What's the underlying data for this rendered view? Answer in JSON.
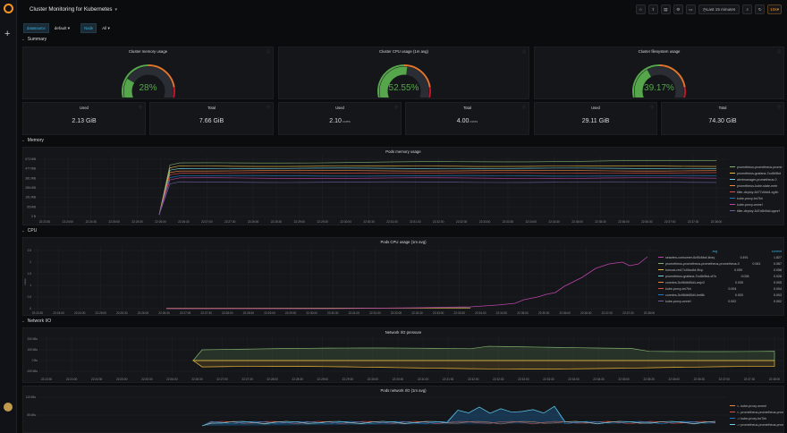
{
  "header": {
    "title": "Cluster Monitoring for Kubernetes",
    "time_range": "Last 15 minutes",
    "refresh": "10s"
  },
  "variables": [
    {
      "label": "datasource",
      "value": "default"
    },
    {
      "label": "Node",
      "value": "All"
    }
  ],
  "rows": {
    "summary": "Summary",
    "memory": "Memory",
    "cpu": "CPU",
    "network": "Network I/O"
  },
  "gauges": [
    {
      "title": "Cluster memory usage",
      "value": "28%",
      "fraction": 0.28
    },
    {
      "title": "Cluster CPU usage (1m avg)",
      "value": "52.55%",
      "fraction": 0.5255
    },
    {
      "title": "Cluster filesystem usage",
      "value": "39.17%",
      "fraction": 0.3917
    }
  ],
  "stats": [
    {
      "label": "Used",
      "value": "2.13 GiB",
      "unit": ""
    },
    {
      "label": "Total",
      "value": "7.66 GiB",
      "unit": ""
    },
    {
      "label": "Used",
      "value": "2.10",
      "unit": "cores"
    },
    {
      "label": "Total",
      "value": "4.00",
      "unit": "cores"
    },
    {
      "label": "Used",
      "value": "29.11 GiB",
      "unit": ""
    },
    {
      "label": "Total",
      "value": "74.30 GiB",
      "unit": ""
    }
  ],
  "colors": {
    "green": "#56a64b",
    "orange": "#e0752d",
    "red": "#c4162a",
    "blue": "#33b5e5"
  },
  "memory_panel": {
    "title": "Pods memory usage",
    "yticks": [
      "572 MiB",
      "477 MiB",
      "381 MiB",
      "286 MiB",
      "191 MiB",
      "95 MiB",
      "0 B"
    ],
    "xticks": [
      "22:23:30",
      "22:24:00",
      "22:24:30",
      "22:25:00",
      "22:25:30",
      "22:26:00",
      "22:26:30",
      "22:27:00",
      "22:27:30",
      "22:28:00",
      "22:28:30",
      "22:29:00",
      "22:29:30",
      "22:30:00",
      "22:30:30",
      "22:31:00",
      "22:31:30",
      "22:32:00",
      "22:32:30",
      "22:33:00",
      "22:33:30",
      "22:34:00",
      "22:34:30",
      "22:35:00",
      "22:35:30",
      "22:36:00",
      "22:36:30",
      "22:37:00",
      "22:37:30",
      "22:38:00"
    ],
    "legend": [
      {
        "name": "prometheus-prometheus-prome",
        "color": "#7eb26d"
      },
      {
        "name": "prometheus-grafana-7cc6b5bd",
        "color": "#eab839"
      },
      {
        "name": "alertmanager-prometheus-0",
        "color": "#6ed0e0"
      },
      {
        "name": "prometheus-kube-state-metr",
        "color": "#ef843c"
      },
      {
        "name": "tiller-deploy-6477c9dd4-xg4b",
        "color": "#e24d42"
      },
      {
        "name": "kube-proxy-bn7kh",
        "color": "#1f78c1"
      },
      {
        "name": "kube-proxy-wnmrl",
        "color": "#ba43a9"
      },
      {
        "name": "tiller-deploy-5d7c6b9dd-qqmrf",
        "color": "#705da0"
      }
    ]
  },
  "cpu_panel": {
    "title": "Pods CPU usage (1m avg)",
    "yticks": [
      "2.5",
      "2",
      "1.5",
      "1",
      "0.5",
      "0"
    ],
    "ylabel": "cores",
    "xticks": [
      "22:23:30",
      "22:24:00",
      "22:24:30",
      "22:25:00",
      "22:25:30",
      "22:26:00",
      "22:26:30",
      "22:27:00",
      "22:27:30",
      "22:28:00",
      "22:28:30",
      "22:29:00",
      "22:29:30",
      "22:30:00",
      "22:30:30",
      "22:31:00",
      "22:31:30",
      "22:32:00",
      "22:32:30",
      "22:33:00",
      "22:33:30",
      "22:34:00",
      "22:34:30",
      "22:35:00",
      "22:35:30",
      "22:36:00",
      "22:36:30",
      "22:37:00",
      "22:37:30",
      "22:38:00"
    ],
    "legend_headers": {
      "avg": "avg",
      "current": "current"
    },
    "legend": [
      {
        "name": "seaview-consumer-6cf5c6bcf-kbzy",
        "color": "#ba43a9",
        "avg": "0.491",
        "current": "1.827"
      },
      {
        "name": "prometheus-prometheus-prometheus-prometheus-0",
        "color": "#7eb26d",
        "avg": "0.061",
        "current": "0.067"
      },
      {
        "name": "tomcat-vm17c45cc6d-9lvp",
        "color": "#eab839",
        "avg": "0.059",
        "current": "0.058"
      },
      {
        "name": "prometheus-grafana-7cc6b5bd-xt7n",
        "color": "#6ed0e0",
        "avg": "0.026",
        "current": "0.026"
      },
      {
        "name": "coredns-5c98db65d4-wvjx2",
        "color": "#ef843c",
        "avg": "0.005",
        "current": "0.005"
      },
      {
        "name": "kube-proxy-bn7kh",
        "color": "#e24d42",
        "avg": "0.004",
        "current": "0.004"
      },
      {
        "name": "coredns-5c98db65d4-tmt8k",
        "color": "#1f78c1",
        "avg": "0.003",
        "current": "0.003"
      },
      {
        "name": "kube-proxy-wnmrl",
        "color": "#705da0",
        "avg": "0.002",
        "current": "0.002"
      }
    ]
  },
  "network_panel": {
    "title": "Network I/O pressure",
    "yticks": [
      "200 kBs",
      "100 kBs",
      "0 Bs",
      "-100 kBs"
    ],
    "xticks": [
      "22:23:30",
      "22:24:00",
      "22:24:30",
      "22:25:00",
      "22:25:30",
      "22:26:00",
      "22:26:30",
      "22:27:00",
      "22:27:30",
      "22:28:00",
      "22:28:30",
      "22:29:00",
      "22:29:30",
      "22:30:00",
      "22:30:30",
      "22:31:00",
      "22:31:30",
      "22:32:00",
      "22:32:30",
      "22:33:00",
      "22:33:30",
      "22:34:00",
      "22:34:30",
      "22:35:00",
      "22:35:30",
      "22:36:00",
      "22:36:30",
      "22:37:00",
      "22:37:30",
      "22:38:00"
    ]
  },
  "pod_network_panel": {
    "title": "Pods network I/O (1m avg)",
    "yticks": [
      "110 kBs",
      "55 kBs"
    ],
    "legend": [
      {
        "name": "<- kube-proxy-wnmrl",
        "color": "#ef843c"
      },
      {
        "name": "<- prometheus-prometheus-prome",
        "color": "#e24d42"
      },
      {
        "name": "-> kube-proxy-bn7kh",
        "color": "#1f78c1"
      },
      {
        "name": "-> prometheus-prometheus-prome",
        "color": "#6ed0e0"
      }
    ]
  }
}
